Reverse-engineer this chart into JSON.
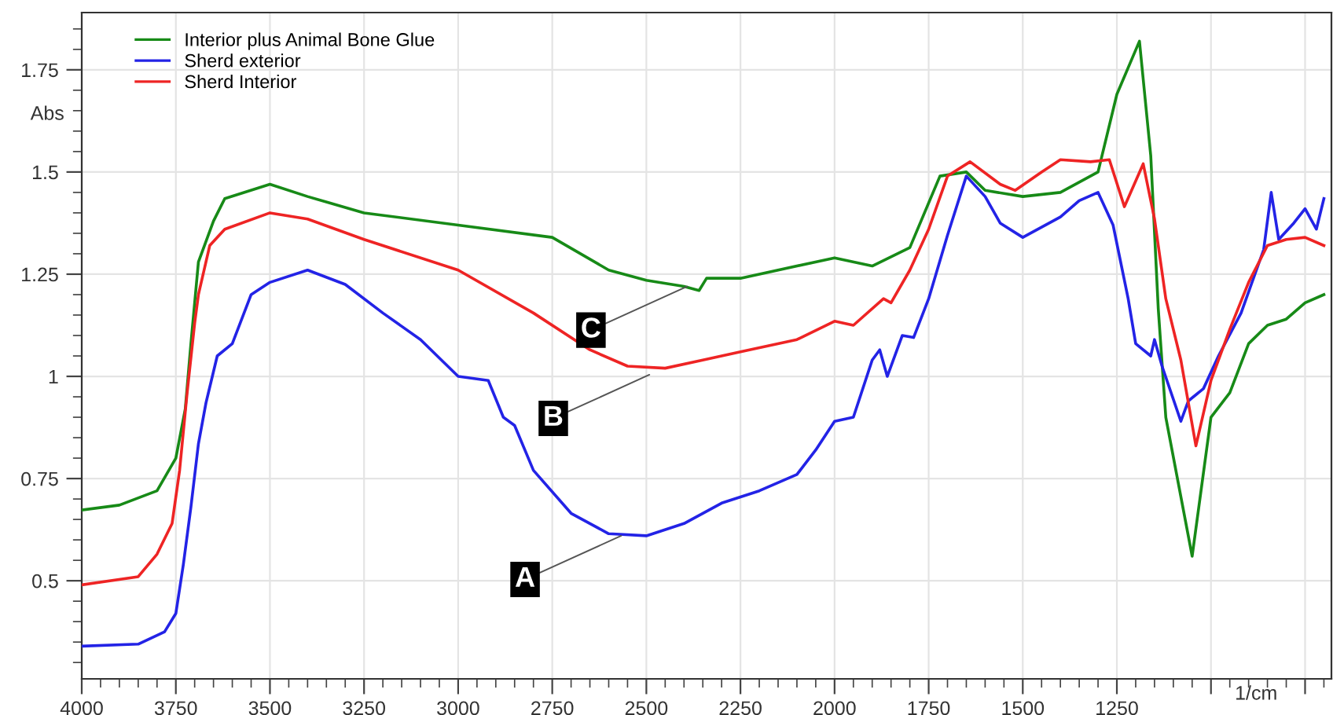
{
  "chart_data": {
    "type": "line",
    "xlabel": "1/cm",
    "ylabel": "Abs",
    "xlim": [
      4000,
      680
    ],
    "ylim": [
      0.26,
      1.89
    ],
    "xticks": [
      4000,
      3750,
      3500,
      3250,
      3000,
      2750,
      2500,
      2250,
      2000,
      1750,
      1500,
      1250,
      {
        "value": 1000,
        "label": null
      },
      {
        "value": 750,
        "label": null
      }
    ],
    "yticks": [
      0.5,
      0.75,
      1,
      1.25,
      1.5,
      1.75
    ],
    "grid": true,
    "legend": "top left",
    "marker": "none",
    "line_style": "solid",
    "series": [
      {
        "name": "Interior plus Animal Bone Glue",
        "color": "#178a17",
        "x": [
          4000,
          3900,
          3800,
          3750,
          3725,
          3710,
          3690,
          3650,
          3620,
          3500,
          3400,
          3250,
          3000,
          2750,
          2600,
          2500,
          2400,
          2360,
          2340,
          2250,
          2000,
          1900,
          1800,
          1720,
          1650,
          1600,
          1500,
          1400,
          1300,
          1250,
          1190,
          1160,
          1140,
          1120,
          1050,
          1000,
          950,
          900,
          850,
          800,
          750,
          700
        ],
        "values": [
          0.673,
          0.685,
          0.72,
          0.8,
          0.92,
          1.08,
          1.28,
          1.38,
          1.435,
          1.47,
          1.44,
          1.4,
          1.37,
          1.34,
          1.26,
          1.235,
          1.22,
          1.21,
          1.24,
          1.24,
          1.29,
          1.27,
          1.315,
          1.49,
          1.5,
          1.455,
          1.44,
          1.45,
          1.5,
          1.69,
          1.82,
          1.54,
          1.165,
          0.9,
          0.56,
          0.9,
          0.96,
          1.08,
          1.125,
          1.14,
          1.18,
          1.2
        ]
      },
      {
        "name": "Sherd exterior",
        "color": "#2323e6",
        "x": [
          4000,
          3850,
          3780,
          3750,
          3730,
          3710,
          3690,
          3670,
          3640,
          3600,
          3550,
          3500,
          3400,
          3300,
          3200,
          3100,
          3000,
          2920,
          2880,
          2850,
          2800,
          2700,
          2600,
          2500,
          2400,
          2300,
          2200,
          2100,
          2050,
          2000,
          1950,
          1900,
          1880,
          1860,
          1820,
          1790,
          1750,
          1700,
          1650,
          1600,
          1560,
          1500,
          1400,
          1350,
          1300,
          1260,
          1220,
          1200,
          1160,
          1150,
          1130,
          1080,
          1060,
          1020,
          980,
          920,
          860,
          840,
          820,
          780,
          750,
          720,
          700
        ],
        "values": [
          0.34,
          0.345,
          0.375,
          0.42,
          0.54,
          0.68,
          0.835,
          0.935,
          1.05,
          1.08,
          1.2,
          1.23,
          1.26,
          1.225,
          1.155,
          1.09,
          1.0,
          0.99,
          0.9,
          0.88,
          0.77,
          0.665,
          0.615,
          0.61,
          0.64,
          0.69,
          0.72,
          0.76,
          0.82,
          0.89,
          0.9,
          1.04,
          1.065,
          1.0,
          1.1,
          1.095,
          1.19,
          1.345,
          1.49,
          1.44,
          1.375,
          1.34,
          1.39,
          1.43,
          1.45,
          1.37,
          1.19,
          1.08,
          1.05,
          1.09,
          1.025,
          0.89,
          0.94,
          0.97,
          1.05,
          1.155,
          1.31,
          1.45,
          1.335,
          1.375,
          1.41,
          1.36,
          1.435
        ]
      },
      {
        "name": "Sherd Interior",
        "color": "#ee2424",
        "x": [
          4000,
          3850,
          3800,
          3760,
          3740,
          3720,
          3700,
          3690,
          3660,
          3620,
          3500,
          3400,
          3250,
          3000,
          2800,
          2650,
          2550,
          2450,
          2350,
          2250,
          2100,
          2000,
          1950,
          1870,
          1850,
          1800,
          1750,
          1700,
          1640,
          1560,
          1520,
          1450,
          1400,
          1320,
          1270,
          1230,
          1180,
          1150,
          1120,
          1080,
          1040,
          1000,
          950,
          900,
          850,
          800,
          750,
          700
        ],
        "values": [
          0.49,
          0.51,
          0.565,
          0.64,
          0.77,
          0.96,
          1.13,
          1.2,
          1.32,
          1.36,
          1.4,
          1.385,
          1.335,
          1.26,
          1.155,
          1.065,
          1.025,
          1.02,
          1.04,
          1.06,
          1.09,
          1.135,
          1.125,
          1.19,
          1.18,
          1.26,
          1.36,
          1.49,
          1.525,
          1.47,
          1.455,
          1.5,
          1.53,
          1.525,
          1.53,
          1.415,
          1.52,
          1.385,
          1.19,
          1.04,
          0.83,
          0.99,
          1.115,
          1.23,
          1.32,
          1.335,
          1.34,
          1.32
        ]
      }
    ],
    "annotations": [
      {
        "text": "A",
        "x": 2567,
        "y": 0.61
      },
      {
        "text": "B",
        "x": 2492,
        "y": 1.004
      },
      {
        "text": "C",
        "x": 2392,
        "y": 1.22
      }
    ]
  }
}
